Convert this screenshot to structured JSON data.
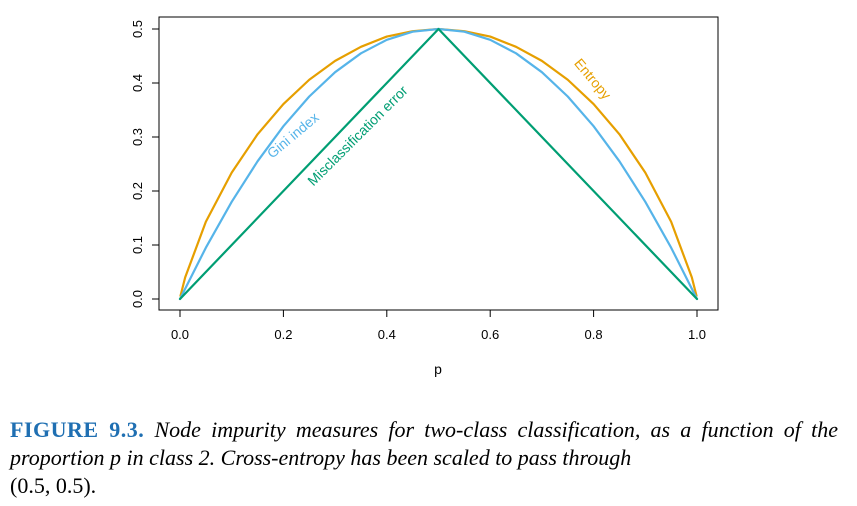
{
  "chart_data": {
    "type": "line",
    "xlabel": "p",
    "ylabel": "",
    "xlim": [
      0,
      1
    ],
    "ylim": [
      0,
      0.5
    ],
    "x_ticks": [
      "0.0",
      "0.2",
      "0.4",
      "0.6",
      "0.8",
      "1.0"
    ],
    "y_ticks": [
      "0.0",
      "0.1",
      "0.2",
      "0.3",
      "0.4",
      "0.5"
    ],
    "x_tick_values": [
      0,
      0.2,
      0.4,
      0.6,
      0.8,
      1.0
    ],
    "y_tick_values": [
      0,
      0.1,
      0.2,
      0.3,
      0.4,
      0.5
    ],
    "grid": false,
    "series": [
      {
        "name": "Entropy",
        "color": "#E69F00",
        "x": [
          0.001,
          0.01,
          0.05,
          0.1,
          0.15,
          0.2,
          0.25,
          0.3,
          0.35,
          0.4,
          0.45,
          0.5,
          0.55,
          0.6,
          0.65,
          0.7,
          0.75,
          0.8,
          0.85,
          0.9,
          0.95,
          0.99,
          0.999
        ],
        "values": [
          0.006,
          0.04,
          0.143,
          0.234,
          0.305,
          0.361,
          0.406,
          0.441,
          0.467,
          0.486,
          0.496,
          0.5,
          0.496,
          0.486,
          0.467,
          0.441,
          0.406,
          0.361,
          0.305,
          0.234,
          0.143,
          0.04,
          0.006
        ]
      },
      {
        "name": "Gini index",
        "color": "#56B4E9",
        "x": [
          0,
          0.05,
          0.1,
          0.15,
          0.2,
          0.25,
          0.3,
          0.35,
          0.4,
          0.45,
          0.5,
          0.55,
          0.6,
          0.65,
          0.7,
          0.75,
          0.8,
          0.85,
          0.9,
          0.95,
          1.0
        ],
        "values": [
          0,
          0.095,
          0.18,
          0.255,
          0.32,
          0.375,
          0.42,
          0.455,
          0.48,
          0.495,
          0.5,
          0.495,
          0.48,
          0.455,
          0.42,
          0.375,
          0.32,
          0.255,
          0.18,
          0.095,
          0
        ]
      },
      {
        "name": "Misclassification error",
        "color": "#009E73",
        "x": [
          0,
          0.5,
          1.0
        ],
        "values": [
          0,
          0.5,
          0
        ]
      }
    ]
  },
  "caption": {
    "figure_label": "FIGURE 9.3.",
    "text": "Node impurity measures for two-class classification, as a function of the proportion p in class 2. Cross-entropy has been scaled to pass through",
    "tail": "(0.5, 0.5)."
  }
}
